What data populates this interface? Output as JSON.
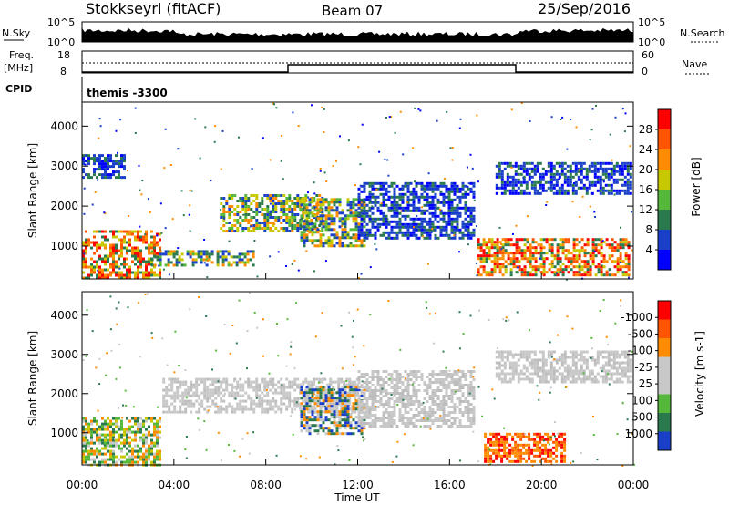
{
  "header": {
    "station": "Stokkseyri (fitACF)",
    "beam": "Beam 07",
    "date": "25/Sep/2016"
  },
  "top_panels": {
    "nsky_label": "N.Sky",
    "nsky_ticks": [
      "10^5",
      "10^0"
    ],
    "nsearch_label": "N.Search",
    "nsearch_ticks": [
      "10^5",
      "10^0"
    ],
    "freq_label": "Freq.",
    "freq_unit": "[MHz]",
    "freq_ticks": [
      "18",
      "8"
    ],
    "nave_label": "Nave",
    "nave_ticks": [
      "60",
      "0"
    ],
    "cpid_label": "CPID",
    "cpid_value": "themis -3300"
  },
  "chart_data": [
    {
      "type": "heatmap",
      "panel": "power",
      "ylabel": "Slant Range [km]",
      "yticks": [
        1000,
        2000,
        3000,
        4000
      ],
      "ylim": [
        180,
        4600
      ],
      "xlim_hours": [
        0,
        24
      ],
      "colorbar": {
        "label": "Power [dB]",
        "ticks": [
          4,
          8,
          12,
          16,
          20,
          24,
          28
        ],
        "colors": [
          "#0000ff",
          "#1a3fc8",
          "#2a7a4e",
          "#55b83a",
          "#c8c800",
          "#ff8c00",
          "#ff5500",
          "#ff0000"
        ]
      },
      "echo_regions": [
        {
          "t": [
            0.0,
            3.4
          ],
          "r": [
            200,
            1400
          ],
          "level": "high"
        },
        {
          "t": [
            0.0,
            1.8
          ],
          "r": [
            2700,
            3300
          ],
          "level": "low"
        },
        {
          "t": [
            3.0,
            7.5
          ],
          "r": [
            500,
            900
          ],
          "level": "medium"
        },
        {
          "t": [
            6.0,
            10.5
          ],
          "r": [
            1400,
            2300
          ],
          "level": "medium"
        },
        {
          "t": [
            9.5,
            12.3
          ],
          "r": [
            1000,
            2200
          ],
          "level": "medium"
        },
        {
          "t": [
            12.0,
            17.0
          ],
          "r": [
            1200,
            2600
          ],
          "level": "low"
        },
        {
          "t": [
            17.2,
            23.8
          ],
          "r": [
            300,
            1200
          ],
          "level": "high"
        },
        {
          "t": [
            18.0,
            23.9
          ],
          "r": [
            2300,
            3100
          ],
          "level": "low"
        }
      ]
    },
    {
      "type": "heatmap",
      "panel": "velocity",
      "ylabel": "Slant Range [km]",
      "yticks": [
        1000,
        2000,
        3000,
        4000
      ],
      "ylim": [
        180,
        4600
      ],
      "xlim_hours": [
        0,
        24
      ],
      "colorbar": {
        "label": "Velocity [m s-1]",
        "ticks": [
          1000,
          500,
          100,
          25,
          -25,
          -100,
          -500,
          -1000
        ],
        "colors": [
          "#1a3fc8",
          "#2a7a4e",
          "#55b83a",
          "#c8c8c8",
          "#c8c8c8",
          "#ff8c00",
          "#ff5500",
          "#ff0000"
        ]
      },
      "echo_regions": [
        {
          "t": [
            0.0,
            3.4
          ],
          "r": [
            200,
            1400
          ],
          "level": "mixed-green"
        },
        {
          "t": [
            3.5,
            12.0
          ],
          "r": [
            1500,
            2400
          ],
          "level": "ground"
        },
        {
          "t": [
            9.5,
            12.3
          ],
          "r": [
            1000,
            2200
          ],
          "level": "mixed-blue"
        },
        {
          "t": [
            12.0,
            17.0
          ],
          "r": [
            1200,
            2600
          ],
          "level": "ground"
        },
        {
          "t": [
            17.5,
            21.0
          ],
          "r": [
            300,
            1000
          ],
          "level": "orange"
        },
        {
          "t": [
            18.0,
            23.9
          ],
          "r": [
            2300,
            3100
          ],
          "level": "ground"
        }
      ]
    }
  ],
  "xaxis": {
    "label": "Time UT",
    "ticks": [
      "00:00",
      "04:00",
      "08:00",
      "12:00",
      "16:00",
      "20:00",
      "00:00"
    ]
  },
  "colors": {
    "axis": "#000000",
    "background": "#ffffff"
  }
}
